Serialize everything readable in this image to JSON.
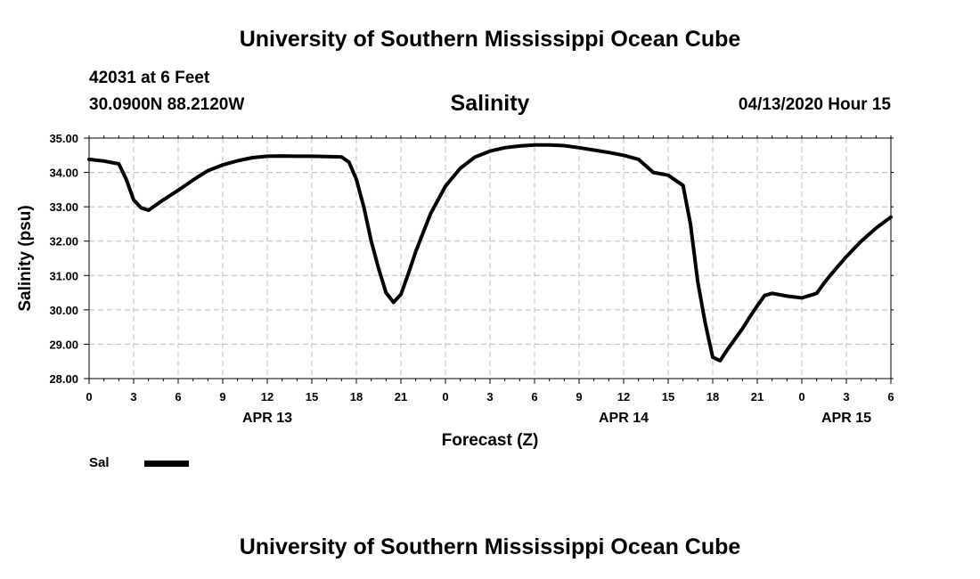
{
  "header": {
    "top_title": "University of Southern Mississippi Ocean Cube",
    "station": "42031 at 6 Feet",
    "coords": "30.0900N 88.2120W",
    "datetime": "04/13/2020 Hour 15",
    "bottom_title": "University of Southern Mississippi Ocean Cube"
  },
  "legend": {
    "label": "Sal"
  },
  "chart_data": {
    "type": "line",
    "title": "Salinity",
    "xlabel": "Forecast (Z)",
    "ylabel": "Salinity (psu)",
    "x_unit": "hours from 04/13 00Z",
    "xlim": [
      0,
      54
    ],
    "ylim": [
      28.0,
      35.0
    ],
    "grid": true,
    "legend_position": "bottom-left",
    "x_ticks": [
      0,
      3,
      6,
      9,
      12,
      15,
      18,
      21,
      24,
      27,
      30,
      33,
      36,
      39,
      42,
      45,
      48,
      51,
      54
    ],
    "x_tick_labels": [
      "0",
      "3",
      "6",
      "9",
      "12",
      "15",
      "18",
      "21",
      "0",
      "3",
      "6",
      "9",
      "12",
      "15",
      "18",
      "21",
      "0",
      "3",
      "6"
    ],
    "y_ticks": [
      28,
      29,
      30,
      31,
      32,
      33,
      34,
      35
    ],
    "y_tick_labels": [
      "28.00",
      "29.00",
      "30.00",
      "31.00",
      "32.00",
      "33.00",
      "34.00",
      "35.00"
    ],
    "date_labels": [
      {
        "x": 12,
        "label": "APR 13"
      },
      {
        "x": 36,
        "label": "APR 14"
      },
      {
        "x": 51,
        "label": "APR 15"
      }
    ],
    "series": [
      {
        "name": "Sal",
        "color": "#000000",
        "x": [
          0,
          1,
          2,
          2.5,
          3,
          3.5,
          4,
          5,
          6,
          7,
          8,
          9,
          10,
          11,
          12,
          13,
          14,
          15,
          16,
          17,
          17.5,
          18,
          18.5,
          19,
          19.5,
          20,
          20.5,
          21,
          21.5,
          22,
          23,
          24,
          25,
          26,
          27,
          28,
          29,
          30,
          31,
          32,
          33,
          34,
          35,
          36,
          37,
          38,
          39,
          40,
          40.5,
          41,
          41.5,
          42,
          42.5,
          43,
          43.5,
          44,
          44.5,
          45,
          45.5,
          46,
          47,
          48,
          49,
          49.5,
          50,
          51,
          52,
          53,
          54
        ],
        "values": [
          34.38,
          34.33,
          34.25,
          33.8,
          33.2,
          32.97,
          32.9,
          33.2,
          33.48,
          33.78,
          34.05,
          34.22,
          34.34,
          34.43,
          34.47,
          34.48,
          34.47,
          34.47,
          34.46,
          34.45,
          34.3,
          33.8,
          33.0,
          32.0,
          31.2,
          30.5,
          30.22,
          30.45,
          31.05,
          31.7,
          32.8,
          33.6,
          34.12,
          34.45,
          34.62,
          34.72,
          34.77,
          34.8,
          34.8,
          34.78,
          34.72,
          34.65,
          34.58,
          34.5,
          34.38,
          34.0,
          33.92,
          33.62,
          32.5,
          30.8,
          29.6,
          28.62,
          28.52,
          28.85,
          29.15,
          29.45,
          29.8,
          30.12,
          30.42,
          30.48,
          30.4,
          30.35,
          30.48,
          30.78,
          31.05,
          31.55,
          32.0,
          32.38,
          32.7
        ]
      }
    ]
  }
}
